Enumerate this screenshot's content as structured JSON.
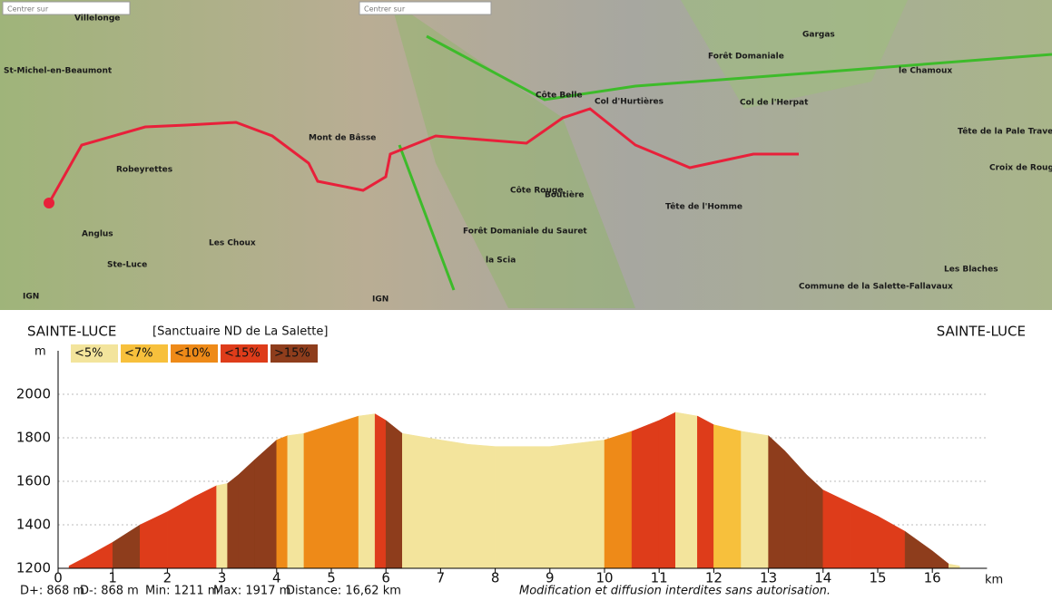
{
  "map": {
    "search_boxes": [
      "Centrer sur",
      "Centrer sur"
    ],
    "labels": [
      "Villelonge",
      "St-Michel-en-Beaumont",
      "Robeyrettes",
      "Mont de Bâsse",
      "Côte Belle",
      "Col d'Hurtières",
      "Côte Rouge",
      "Forêt Domaniale du Sauret",
      "Boutière",
      "Tête de l'Homme",
      "Forêt Domaniale",
      "Gargas",
      "le Chamoux",
      "Col de l'Herpat",
      "Tête de la Pale Traversière",
      "Croix de Rougny",
      "Les Blaches",
      "Commune de la Salette-Fallavaux",
      "Ste-Luce",
      "Les Choux",
      "Anglus",
      "la Scia",
      "IGN",
      "IGN"
    ]
  },
  "chart_data": {
    "type": "area",
    "title": "SAINTE-LUCE",
    "subtitle": "[Sanctuaire ND de La Salette]",
    "title_right": "SAINTE-LUCE",
    "y_label": "m",
    "x_label": "km",
    "slope_classes": [
      {
        "label": "<5%",
        "value": 5,
        "color": "#f3e49c"
      },
      {
        "label": "<7%",
        "value": 7,
        "color": "#f7c03c"
      },
      {
        "label": "<10%",
        "value": 10,
        "color": "#ee8a18"
      },
      {
        "label": "<15%",
        "value": 15,
        "color": "#de3c1a"
      },
      {
        "label": ">15%",
        "value": 15,
        "color": "#8e3d1c"
      }
    ],
    "x": [
      0.2,
      0.5,
      1,
      1.5,
      2,
      2.5,
      2.9,
      3.1,
      3.3,
      3.6,
      4,
      4.2,
      4.5,
      5,
      5.5,
      5.8,
      6,
      6.3,
      7,
      7.5,
      8,
      9,
      10,
      10.5,
      11,
      11.3,
      11.7,
      12,
      12.5,
      13,
      13.3,
      13.7,
      14,
      14.5,
      15,
      15.5,
      16,
      16.3,
      16.5
    ],
    "values": [
      1211,
      1250,
      1320,
      1400,
      1460,
      1530,
      1580,
      1590,
      1630,
      1700,
      1790,
      1810,
      1820,
      1860,
      1900,
      1910,
      1880,
      1820,
      1790,
      1770,
      1760,
      1760,
      1790,
      1830,
      1880,
      1917,
      1900,
      1860,
      1830,
      1810,
      1740,
      1630,
      1560,
      1500,
      1440,
      1370,
      1280,
      1220,
      1211
    ],
    "xlim": [
      0,
      17
    ],
    "ylim": [
      1200,
      2200
    ],
    "xticks": [
      0,
      1,
      2,
      3,
      4,
      5,
      6,
      7,
      8,
      9,
      10,
      11,
      12,
      13,
      14,
      15,
      16
    ],
    "yticks": [
      1200,
      1400,
      1600,
      1800,
      2000
    ],
    "grid": true,
    "stats": [
      "D+: 868 m",
      "D-: 868 m",
      "Min: 1211 m",
      "Max: 1917 m",
      "Distance: 16,62 km"
    ],
    "note": "Modification et diffusion interdites sans autorisation."
  }
}
